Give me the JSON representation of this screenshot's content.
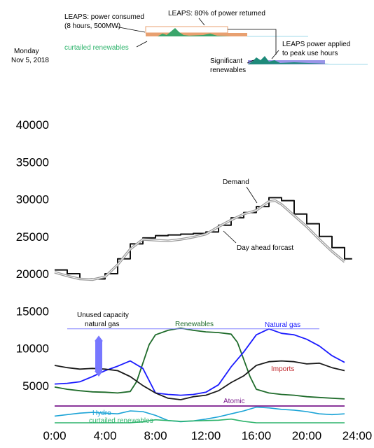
{
  "header": {
    "day": "Monday",
    "date": "Nov 5, 2018",
    "leaps_consumed": "LEAPS: power consumed",
    "leaps_consumed_detail": "(8 hours, 500MW)",
    "curtailed_top": "curtailed renewables",
    "leaps_returned": "LEAPS: 80% of power returned",
    "leaps_applied": "LEAPS power applied",
    "leaps_applied_detail": "to peak use hours",
    "significant": "Significant",
    "significant_detail": "renewables"
  },
  "colors": {
    "demand": "#111111",
    "forecast": "#999999",
    "renewables": "#1e6b2a",
    "natural_gas": "#1a1aff",
    "imports": "#1a1a1a",
    "hydro": "#1aa3d6",
    "curtailed": "#2db36b",
    "atomic": "#7a1a8c",
    "capacity_arrow": "#7777ff",
    "capacity_line": "#8080ff"
  },
  "chart_data": {
    "type": "line",
    "x_unit": "hours",
    "xlim": [
      0,
      24
    ],
    "ylim": [
      0,
      40000
    ],
    "x_ticks": [
      0,
      4,
      8,
      12,
      16,
      20,
      24
    ],
    "x_tick_labels": [
      "0:00",
      "4:00",
      "8:00",
      "12:00",
      "16:00",
      "20:00",
      "24:00"
    ],
    "y_ticks": [
      5000,
      10000,
      15000,
      20000,
      25000,
      30000,
      35000,
      40000
    ],
    "y_tick_labels": [
      "5000",
      "10000",
      "15000",
      "20000",
      "25000",
      "30000",
      "35000",
      "40000"
    ],
    "annotations": {
      "demand": "Demand",
      "forecast": "Day ahead forcast",
      "renewables": "Renewables",
      "natural_gas": "Natural gas",
      "imports": "Imports",
      "atomic": "Atomic",
      "hydro": "Hydro",
      "curtailed": "curtailed renewables",
      "unused_1": "Unused capacity",
      "unused_2": "natural gas"
    },
    "unused_capacity": {
      "x": 3.5,
      "y_range": [
        6200,
        11700
      ],
      "line_y": 12600,
      "line_x": [
        1,
        21
      ]
    },
    "series": [
      {
        "key": "demand",
        "step": true,
        "x": [
          0,
          1,
          2,
          3,
          4,
          5,
          6,
          7,
          8,
          9,
          10,
          11,
          12,
          13,
          14,
          15,
          16,
          17,
          18,
          19,
          20,
          21,
          22,
          23
        ],
        "y": [
          20500,
          20000,
          19300,
          19300,
          20000,
          22000,
          24000,
          24800,
          25100,
          25200,
          25300,
          25400,
          25600,
          26500,
          27500,
          28200,
          29000,
          30200,
          29800,
          28000,
          26700,
          25000,
          23500,
          22000
        ]
      },
      {
        "key": "forecast",
        "step": false,
        "x": [
          0,
          1,
          2,
          3,
          4,
          5,
          6,
          7,
          8,
          9,
          10,
          11,
          12,
          13,
          14,
          15,
          16,
          17,
          17.5,
          18,
          19,
          20,
          21,
          22,
          23
        ],
        "y": [
          20200,
          19700,
          19300,
          19200,
          19600,
          21200,
          23300,
          24600,
          24500,
          24400,
          24600,
          24900,
          25300,
          26300,
          27200,
          28000,
          28500,
          29700,
          29800,
          29300,
          27800,
          26300,
          24600,
          23000,
          21600
        ]
      },
      {
        "key": "renewables",
        "step": false,
        "x": [
          0,
          1,
          2,
          3,
          4,
          5,
          6,
          6.5,
          7,
          7.5,
          8,
          9,
          10,
          11,
          12,
          13,
          14,
          14.5,
          15,
          15.5,
          16,
          17,
          18,
          19,
          20,
          21,
          22,
          23
        ],
        "y": [
          4800,
          4500,
          4300,
          4150,
          4100,
          4000,
          4200,
          5500,
          8000,
          10500,
          11800,
          12400,
          12700,
          12400,
          12200,
          12100,
          11900,
          10800,
          8500,
          6200,
          4500,
          4000,
          3800,
          3700,
          3500,
          3400,
          3300,
          3200
        ]
      },
      {
        "key": "natural_gas",
        "step": false,
        "x": [
          0,
          1,
          2,
          3,
          4,
          5,
          6,
          7,
          8,
          9,
          10,
          11,
          12,
          13,
          14,
          15,
          16,
          17,
          18,
          19,
          20,
          21,
          22,
          23
        ],
        "y": [
          5200,
          5300,
          5500,
          6200,
          7000,
          7600,
          8300,
          7300,
          4000,
          3800,
          3700,
          3800,
          4100,
          5100,
          7500,
          9500,
          11800,
          12600,
          12000,
          11800,
          11200,
          10300,
          9000,
          8100
        ]
      },
      {
        "key": "imports",
        "step": false,
        "x": [
          0,
          1,
          2,
          3,
          4,
          5,
          6,
          7,
          8,
          9,
          10,
          11,
          12,
          13,
          14,
          15,
          16,
          17,
          18,
          19,
          20,
          21,
          22,
          23
        ],
        "y": [
          7700,
          7400,
          7200,
          7300,
          7200,
          7000,
          6200,
          5000,
          4000,
          3300,
          3100,
          3500,
          3700,
          4300,
          5400,
          6300,
          7700,
          8200,
          8300,
          8200,
          7900,
          8000,
          7400,
          7000
        ]
      },
      {
        "key": "atomic",
        "step": false,
        "x": [
          0,
          23
        ],
        "y": [
          2250,
          2250
        ]
      },
      {
        "key": "hydro",
        "step": false,
        "x": [
          0,
          1,
          2,
          3,
          4,
          5,
          6,
          7,
          8,
          9,
          10,
          11,
          12,
          13,
          14,
          15,
          16,
          17,
          18,
          19,
          20,
          21,
          22,
          23
        ],
        "y": [
          900,
          1100,
          1300,
          1400,
          1300,
          1200,
          1600,
          1500,
          1000,
          300,
          150,
          250,
          500,
          800,
          1200,
          1600,
          2100,
          2000,
          1800,
          1700,
          1500,
          1200,
          1100,
          1200
        ]
      },
      {
        "key": "curtailed",
        "step": false,
        "x": [
          0,
          6,
          7,
          8,
          9,
          10,
          11,
          12,
          13,
          14,
          15,
          16,
          23
        ],
        "y": [
          0,
          0,
          150,
          400,
          300,
          200,
          250,
          300,
          350,
          500,
          200,
          0,
          0
        ]
      }
    ]
  }
}
